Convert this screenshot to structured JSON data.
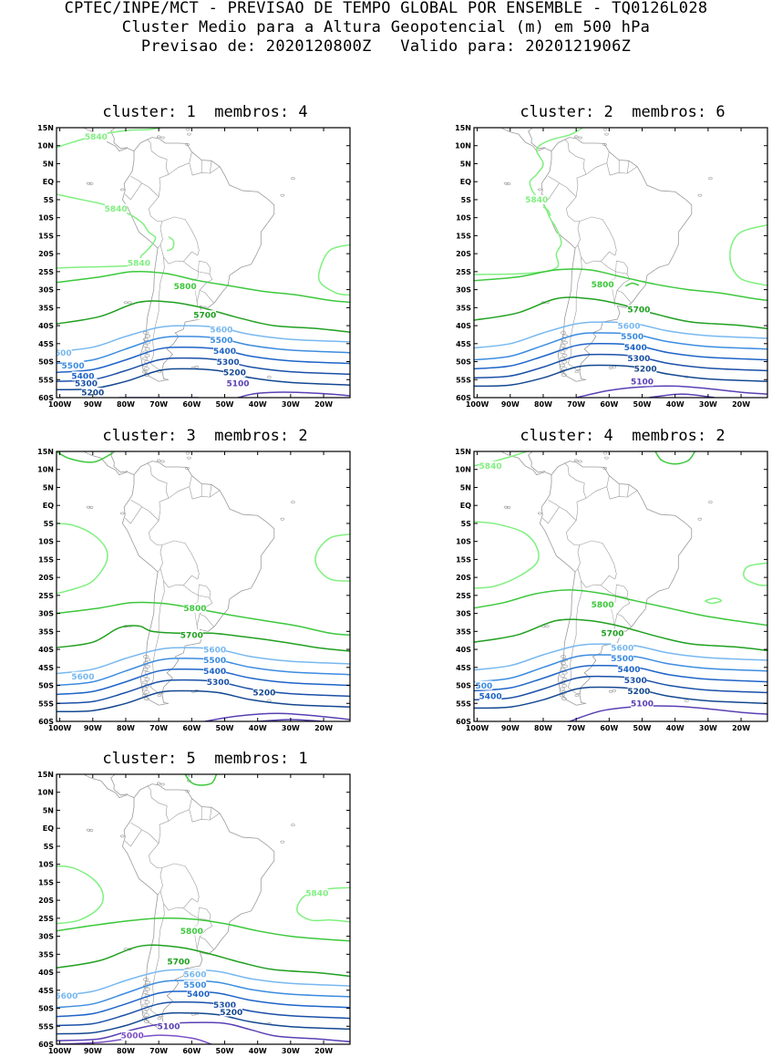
{
  "header": {
    "line1": "CPTEC/INPE/MCT - PREVISAO DE TEMPO GLOBAL POR ENSEMBLE - TQ0126L028",
    "line2": "Cluster Medio para a Altura Geopotencial (m) em 500 hPa",
    "line3": "Previsao de: 2020120800Z   Valido para: 2020121906Z"
  },
  "axes": {
    "lat_labels": [
      "15N",
      "10N",
      "5N",
      "EQ",
      "5S",
      "10S",
      "15S",
      "20S",
      "25S",
      "30S",
      "35S",
      "40S",
      "45S",
      "50S",
      "55S",
      "60S"
    ],
    "lon_labels": [
      "100W",
      "90W",
      "80W",
      "70W",
      "60W",
      "50W",
      "40W",
      "30W",
      "20W"
    ]
  },
  "colors": {
    "c5840": "#80f080",
    "c5800": "#3cc83c",
    "c5700": "#20a020",
    "c5600": "#78b8f0",
    "c5500": "#3c8ce0",
    "c5400": "#1e64c8",
    "c5300": "#1a50a8",
    "c5200": "#144890",
    "c5100": "#5a40b4",
    "c5000": "#7a50c8",
    "land": "#9a9a9a"
  },
  "panels": [
    {
      "title": "cluster: 1  membros: 4",
      "labels": [
        {
          "text": "5840",
          "lon": -89,
          "lat": 12.5,
          "color": "c5840"
        },
        {
          "text": "5840",
          "lon": -83,
          "lat": -7.5,
          "color": "c5840"
        },
        {
          "text": "5840",
          "lon": -76,
          "lat": -22.5,
          "color": "c5840"
        },
        {
          "text": "5800",
          "lon": -62,
          "lat": -29,
          "color": "c5800"
        },
        {
          "text": "5700",
          "lon": -56,
          "lat": -37,
          "color": "c5700"
        },
        {
          "text": "5600",
          "lon": -51,
          "lat": -41,
          "color": "c5600"
        },
        {
          "text": "5500",
          "lon": -51,
          "lat": -44,
          "color": "c5500"
        },
        {
          "text": "5400",
          "lon": -50,
          "lat": -47,
          "color": "c5400"
        },
        {
          "text": "5300",
          "lon": -49,
          "lat": -50,
          "color": "c5300"
        },
        {
          "text": "5200",
          "lon": -47,
          "lat": -53,
          "color": "c5200"
        },
        {
          "text": "5100",
          "lon": -46,
          "lat": -56,
          "color": "c5100"
        },
        {
          "text": "600",
          "lon": -99,
          "lat": -47.5,
          "color": "c5600"
        },
        {
          "text": "5500",
          "lon": -96,
          "lat": -51,
          "color": "c5500"
        },
        {
          "text": "5400",
          "lon": -93,
          "lat": -54,
          "color": "c5400"
        },
        {
          "text": "5300",
          "lon": -92,
          "lat": -56,
          "color": "c5300"
        },
        {
          "text": "5200",
          "lon": -90,
          "lat": -58.5,
          "color": "c5200"
        }
      ]
    },
    {
      "title": "cluster: 2  membros: 6",
      "labels": [
        {
          "text": "5840",
          "lon": -82,
          "lat": -5,
          "color": "c5840"
        },
        {
          "text": "5800",
          "lon": -62,
          "lat": -28.5,
          "color": "c5800"
        },
        {
          "text": "5700",
          "lon": -51,
          "lat": -35.5,
          "color": "c5700"
        },
        {
          "text": "5600",
          "lon": -54,
          "lat": -40,
          "color": "c5600"
        },
        {
          "text": "5500",
          "lon": -53,
          "lat": -43,
          "color": "c5500"
        },
        {
          "text": "5400",
          "lon": -52,
          "lat": -46,
          "color": "c5400"
        },
        {
          "text": "5300",
          "lon": -51,
          "lat": -49,
          "color": "c5300"
        },
        {
          "text": "5200",
          "lon": -49,
          "lat": -52,
          "color": "c5200"
        },
        {
          "text": "5100",
          "lon": -50,
          "lat": -55.5,
          "color": "c5100"
        }
      ]
    },
    {
      "title": "cluster: 3  membros: 2",
      "labels": [
        {
          "text": "5800",
          "lon": -59,
          "lat": -28.5,
          "color": "c5800"
        },
        {
          "text": "5700",
          "lon": -60,
          "lat": -36,
          "color": "c5700"
        },
        {
          "text": "5600",
          "lon": -53,
          "lat": -40,
          "color": "c5600"
        },
        {
          "text": "5500",
          "lon": -53,
          "lat": -43,
          "color": "c5500"
        },
        {
          "text": "5400",
          "lon": -53,
          "lat": -46,
          "color": "c5400"
        },
        {
          "text": "5300",
          "lon": -52,
          "lat": -49,
          "color": "c5300"
        },
        {
          "text": "5200",
          "lon": -38,
          "lat": -52,
          "color": "c5200"
        },
        {
          "text": "5600",
          "lon": -93,
          "lat": -47.5,
          "color": "c5600"
        }
      ]
    },
    {
      "title": "cluster: 4  membros: 2",
      "labels": [
        {
          "text": "5840",
          "lon": -96,
          "lat": 11,
          "color": "c5840"
        },
        {
          "text": "5800",
          "lon": -62,
          "lat": -27.5,
          "color": "c5800"
        },
        {
          "text": "5700",
          "lon": -59,
          "lat": -35.5,
          "color": "c5700"
        },
        {
          "text": "5600",
          "lon": -56,
          "lat": -39.5,
          "color": "c5600"
        },
        {
          "text": "5500",
          "lon": -56,
          "lat": -42.5,
          "color": "c5500"
        },
        {
          "text": "5400",
          "lon": -54,
          "lat": -45.5,
          "color": "c5400"
        },
        {
          "text": "5300",
          "lon": -52,
          "lat": -48.5,
          "color": "c5300"
        },
        {
          "text": "5200",
          "lon": -51,
          "lat": -51.5,
          "color": "c5200"
        },
        {
          "text": "5100",
          "lon": -50,
          "lat": -55,
          "color": "c5100"
        },
        {
          "text": "500",
          "lon": -98,
          "lat": -50,
          "color": "c5500"
        },
        {
          "text": "5400",
          "lon": -96,
          "lat": -53,
          "color": "c5400"
        }
      ]
    },
    {
      "title": "cluster: 5  membros: 1",
      "labels": [
        {
          "text": "5840",
          "lon": -22,
          "lat": -18,
          "color": "c5840"
        },
        {
          "text": "5800",
          "lon": -60,
          "lat": -28.5,
          "color": "c5800"
        },
        {
          "text": "5700",
          "lon": -64,
          "lat": -37,
          "color": "c5700"
        },
        {
          "text": "5600",
          "lon": -59,
          "lat": -40.5,
          "color": "c5600"
        },
        {
          "text": "5500",
          "lon": -59,
          "lat": -43.5,
          "color": "c5500"
        },
        {
          "text": "5400",
          "lon": -58,
          "lat": -46,
          "color": "c5400"
        },
        {
          "text": "5300",
          "lon": -50,
          "lat": -49,
          "color": "c5300"
        },
        {
          "text": "5200",
          "lon": -48,
          "lat": -51,
          "color": "c5200"
        },
        {
          "text": "5100",
          "lon": -67,
          "lat": -55,
          "color": "c5100"
        },
        {
          "text": "5000",
          "lon": -78,
          "lat": -57.5,
          "color": "c5000"
        },
        {
          "text": "5600",
          "lon": -98,
          "lat": -46.5,
          "color": "c5600"
        }
      ]
    }
  ]
}
